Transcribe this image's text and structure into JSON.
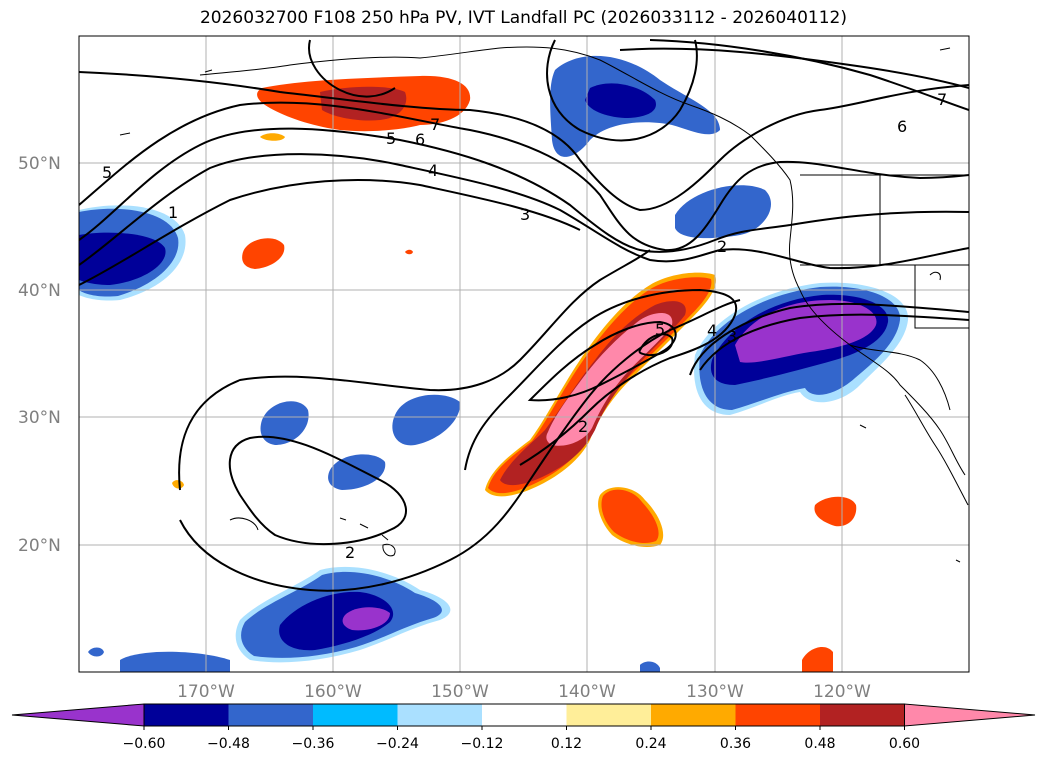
{
  "title": "2026032700 F108 250 hPa PV, IVT Landfall PC (2026033112 - 2026040112)",
  "lat_labels": [
    "50°N",
    "40°N",
    "30°N",
    "20°N"
  ],
  "lon_labels": [
    "170°W",
    "160°W",
    "150°W",
    "140°W",
    "130°W",
    "120°W"
  ],
  "colorbar": {
    "colors": [
      "#9933cc",
      "#000099",
      "#3366cc",
      "#00bbff",
      "#aae0ff",
      "#ffffff",
      "#ffee99",
      "#ffaa00",
      "#ff4400",
      "#b22222",
      "#ff88aa"
    ],
    "tick_labels": [
      "−0.60",
      "−0.48",
      "−0.36",
      "−0.24",
      "−0.12",
      "0.12",
      "0.24",
      "0.36",
      "0.48",
      "0.60"
    ]
  },
  "contour_labels": [
    "5",
    "1",
    "5",
    "6",
    "7",
    "4",
    "3",
    "2",
    "2",
    "7",
    "6",
    "2",
    "5",
    "4",
    "3",
    "2"
  ],
  "map": {
    "projection": "cylindrical",
    "lon_range": [
      -180,
      -110
    ],
    "lat_range": [
      10,
      60
    ],
    "gridlines": true,
    "field_shaded": "IVT Landfall PC",
    "field_contoured": "250 hPa PV"
  }
}
